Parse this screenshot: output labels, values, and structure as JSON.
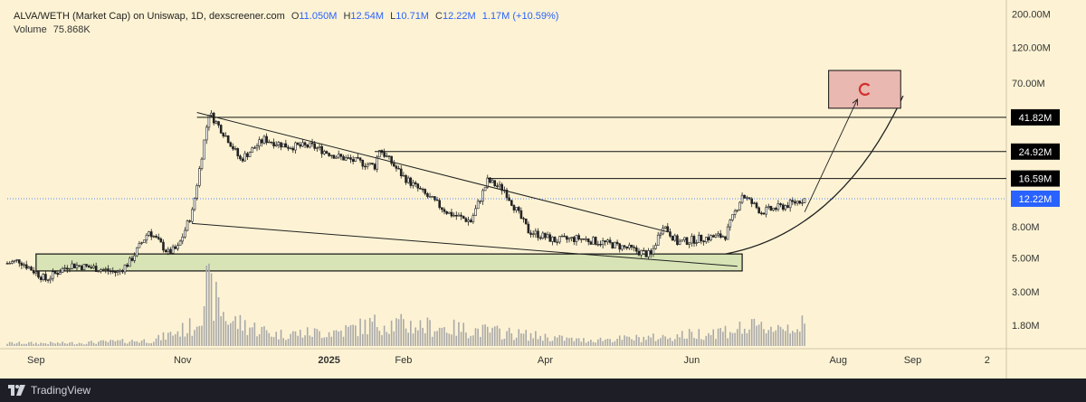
{
  "header": {
    "symbol": "ALVA/WETH (Market Cap) on Uniswap, 1D, dexscreener.com",
    "open_label": "O",
    "open": "11.050M",
    "high_label": "H",
    "high": "12.54M",
    "low_label": "L",
    "low": "10.71M",
    "close_label": "C",
    "close": "12.22M",
    "change": "1.17M (+10.59%)",
    "volume_label": "Volume",
    "volume": "75.868K"
  },
  "footer": {
    "brand": "TradingView"
  },
  "colors": {
    "background": "#fdf3d4",
    "candle_up": "#222222",
    "candle_down": "#222222",
    "volume": "#a9a9a9",
    "current_price_tag": "#2962ff",
    "level_tag": "#000000",
    "support_zone": "#d9e4b6",
    "target_box": "#e9b8b0",
    "magnet_icon": "#d32f2f"
  },
  "chart_data": {
    "type": "candlestick",
    "scale": "log",
    "y_axis_labels": [
      "200.00M",
      "120.00M",
      "70.00M",
      "8.00M",
      "5.00M",
      "3.00M",
      "1.80M"
    ],
    "y_ticks_values": [
      200,
      120,
      70,
      8,
      5,
      3,
      1.8
    ],
    "y_units": "M",
    "x_axis_labels": [
      {
        "label": "Sep",
        "bold": false
      },
      {
        "label": "Nov",
        "bold": false
      },
      {
        "label": "2025",
        "bold": true
      },
      {
        "label": "Feb",
        "bold": false
      },
      {
        "label": "Apr",
        "bold": false
      },
      {
        "label": "Jun",
        "bold": false
      },
      {
        "label": "Aug",
        "bold": false
      },
      {
        "label": "Sep",
        "bold": false
      },
      {
        "label": "2",
        "bold": false
      }
    ],
    "x_axis_dates": [
      "2024-09-01",
      "2024-11-01",
      "2025-01-01",
      "2025-02-01",
      "2025-04-01",
      "2025-06-01",
      "2025-08-01",
      "2025-09-01",
      "2025-10-02"
    ],
    "date_range": [
      "2024-08-20",
      "2025-10-10"
    ],
    "levels": [
      {
        "label": "41.82M",
        "value": 41.82
      },
      {
        "label": "24.92M",
        "value": 24.92
      },
      {
        "label": "16.59M",
        "value": 16.59
      }
    ],
    "current_price": {
      "label": "12.22M",
      "value": 12.22
    },
    "close_series": [
      {
        "date": "2024-08-20",
        "close": 4.6
      },
      {
        "date": "2024-08-25",
        "close": 4.8
      },
      {
        "date": "2024-09-05",
        "close": 3.6
      },
      {
        "date": "2024-09-15",
        "close": 4.5
      },
      {
        "date": "2024-09-25",
        "close": 4.3
      },
      {
        "date": "2024-10-05",
        "close": 4.0
      },
      {
        "date": "2024-10-10",
        "close": 4.7
      },
      {
        "date": "2024-10-18",
        "close": 7.5
      },
      {
        "date": "2024-10-26",
        "close": 5.4
      },
      {
        "date": "2024-10-30",
        "close": 5.8
      },
      {
        "date": "2024-11-05",
        "close": 10.0
      },
      {
        "date": "2024-11-12",
        "close": 45.0
      },
      {
        "date": "2024-11-20",
        "close": 30.0
      },
      {
        "date": "2024-11-25",
        "close": 22.0
      },
      {
        "date": "2024-12-05",
        "close": 30.0
      },
      {
        "date": "2024-12-15",
        "close": 27.0
      },
      {
        "date": "2024-12-25",
        "close": 27.0
      },
      {
        "date": "2025-01-05",
        "close": 23.0
      },
      {
        "date": "2025-01-20",
        "close": 20.0
      },
      {
        "date": "2025-01-22",
        "close": 26.0
      },
      {
        "date": "2025-02-01",
        "close": 17.0
      },
      {
        "date": "2025-02-10",
        "close": 13.0
      },
      {
        "date": "2025-02-20",
        "close": 9.8
      },
      {
        "date": "2025-03-01",
        "close": 8.7
      },
      {
        "date": "2025-03-08",
        "close": 16.0
      },
      {
        "date": "2025-03-15",
        "close": 14.0
      },
      {
        "date": "2025-03-25",
        "close": 7.5
      },
      {
        "date": "2025-04-05",
        "close": 6.5
      },
      {
        "date": "2025-04-15",
        "close": 6.7
      },
      {
        "date": "2025-04-25",
        "close": 6.3
      },
      {
        "date": "2025-05-05",
        "close": 5.8
      },
      {
        "date": "2025-05-15",
        "close": 5.2
      },
      {
        "date": "2025-05-20",
        "close": 8.3
      },
      {
        "date": "2025-05-26",
        "close": 6.3
      },
      {
        "date": "2025-06-05",
        "close": 6.7
      },
      {
        "date": "2025-06-15",
        "close": 7.0
      },
      {
        "date": "2025-06-22",
        "close": 13.0
      },
      {
        "date": "2025-06-30",
        "close": 10.0
      },
      {
        "date": "2025-07-10",
        "close": 11.0
      },
      {
        "date": "2025-07-18",
        "close": 12.2
      }
    ],
    "volume_series": [
      {
        "date": "2024-09-15",
        "volume": 0.05
      },
      {
        "date": "2024-10-20",
        "volume": 0.1
      },
      {
        "date": "2024-11-06",
        "volume": 0.35
      },
      {
        "date": "2024-11-11",
        "volume": 1.0
      },
      {
        "date": "2024-11-20",
        "volume": 0.45
      },
      {
        "date": "2024-12-10",
        "volume": 0.2
      },
      {
        "date": "2025-01-05",
        "volume": 0.25
      },
      {
        "date": "2025-01-22",
        "volume": 0.4
      },
      {
        "date": "2025-03-10",
        "volume": 0.25
      },
      {
        "date": "2025-04-15",
        "volume": 0.1
      },
      {
        "date": "2025-05-20",
        "volume": 0.15
      },
      {
        "date": "2025-06-22",
        "volume": 0.3
      },
      {
        "date": "2025-07-15",
        "volume": 0.35
      }
    ],
    "support_zone": {
      "from": "2024-09-01",
      "to": "2025-06-22",
      "low": 4.1,
      "high": 5.3
    },
    "target_zone": {
      "from": "2025-07-28",
      "to": "2025-08-27",
      "low": 48.0,
      "high": 85.0
    },
    "trendlines": [
      {
        "from_date": "2024-11-07",
        "from_value": 45.0,
        "to_date": "2025-05-22",
        "to_value": 7.4
      },
      {
        "from_date": "2024-11-05",
        "from_value": 8.4,
        "to_date": "2025-06-20",
        "to_value": 4.4
      }
    ],
    "projection_arrow": {
      "from_date": "2025-07-18",
      "from_value": 10.0,
      "to_date": "2025-08-09",
      "to_value": 55.0
    },
    "projection_curve": [
      {
        "date": "2025-06-15",
        "value": 5.3
      },
      {
        "date": "2025-07-15",
        "value": 6.5
      },
      {
        "date": "2025-08-10",
        "value": 14.0
      },
      {
        "date": "2025-08-28",
        "value": 58.0
      }
    ]
  }
}
